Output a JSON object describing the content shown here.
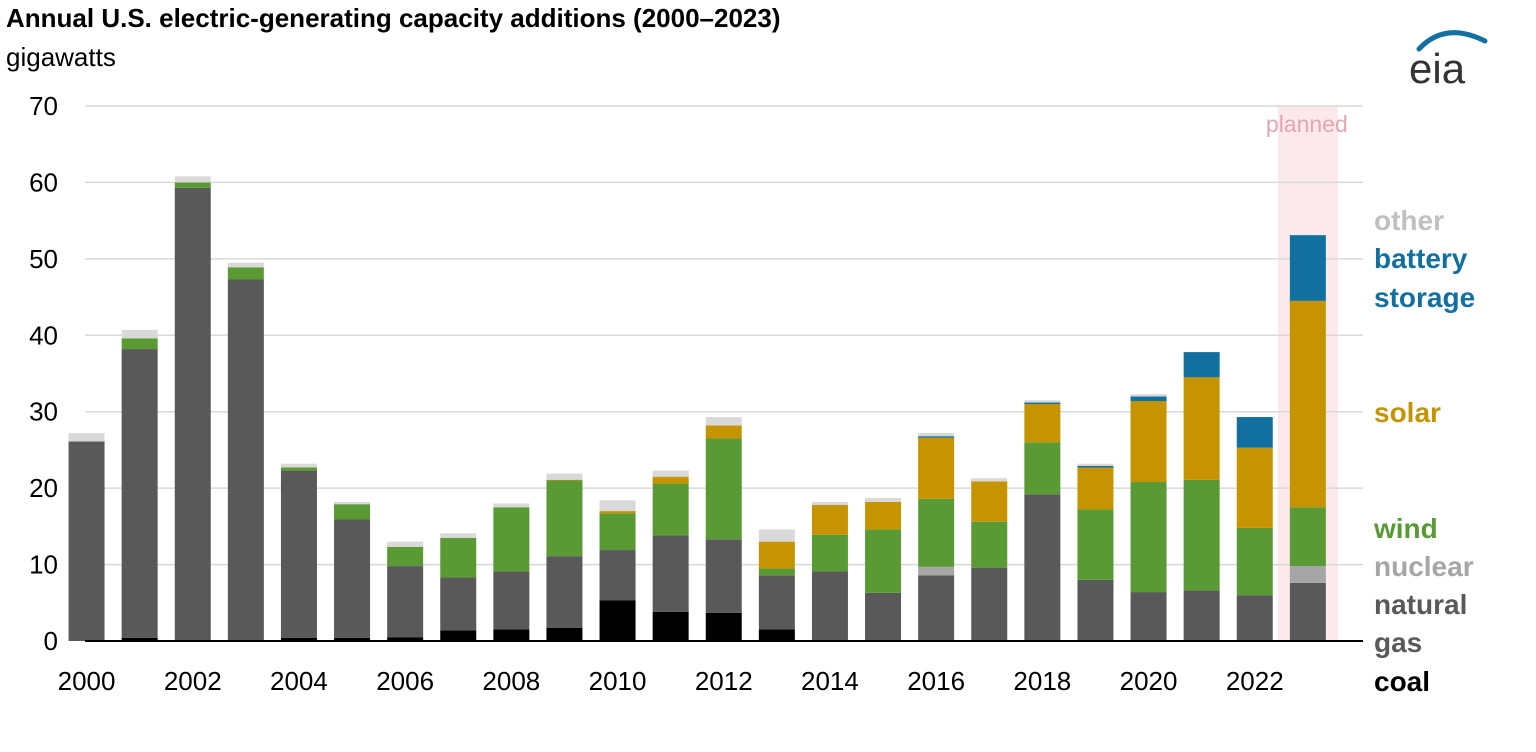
{
  "header": {
    "title": "Annual U.S. electric-generating capacity additions (2000–2023)",
    "subtitle": "gigawatts"
  },
  "logo": {
    "text": "eia"
  },
  "chart_data": {
    "type": "bar",
    "stacked": true,
    "title": "Annual U.S. electric-generating capacity additions (2000–2023)",
    "ylabel": "gigawatts",
    "xlabel": "",
    "ylim": [
      0,
      70
    ],
    "yticks": [
      0,
      10,
      20,
      30,
      40,
      50,
      60,
      70
    ],
    "grid": true,
    "legend_placement": "right",
    "categories": [
      "2000",
      "2001",
      "2002",
      "2003",
      "2004",
      "2005",
      "2006",
      "2007",
      "2008",
      "2009",
      "2010",
      "2011",
      "2012",
      "2013",
      "2014",
      "2015",
      "2016",
      "2017",
      "2018",
      "2019",
      "2020",
      "2021",
      "2022",
      "2023"
    ],
    "x_tick_labels": [
      "2000",
      "2002",
      "2004",
      "2006",
      "2008",
      "2010",
      "2012",
      "2014",
      "2016",
      "2018",
      "2020",
      "2022"
    ],
    "annotation": {
      "label": "planned",
      "category": "2023",
      "color": "#fbe9ec",
      "text_color": "#e4a6b2"
    },
    "series": [
      {
        "name": "coal",
        "color": "#000000",
        "values": [
          0,
          0.4,
          0,
          0,
          0.4,
          0.4,
          0.5,
          1.4,
          1.5,
          1.7,
          5.3,
          3.8,
          3.7,
          1.5,
          0,
          0,
          0,
          0,
          0,
          0,
          0,
          0,
          0,
          0
        ]
      },
      {
        "name": "natural gas",
        "color": "#595959",
        "values": [
          26.1,
          37.8,
          59.3,
          47.3,
          21.9,
          15.5,
          9.3,
          6.9,
          7.6,
          9.4,
          6.6,
          10.0,
          9.6,
          7.1,
          9.1,
          6.3,
          8.6,
          9.6,
          19.2,
          8.0,
          6.4,
          6.6,
          6.0,
          7.6
        ]
      },
      {
        "name": "nuclear",
        "color": "#a6a6a6",
        "values": [
          0,
          0,
          0,
          0,
          0,
          0,
          0,
          0,
          0,
          0,
          0,
          0,
          0,
          0,
          0,
          0,
          1.1,
          0,
          0,
          0,
          0,
          0,
          0,
          2.2
        ]
      },
      {
        "name": "wind",
        "color": "#5a9a34",
        "values": [
          0,
          1.4,
          0.7,
          1.6,
          0.4,
          2.0,
          2.5,
          5.2,
          8.4,
          9.9,
          4.8,
          6.8,
          13.2,
          0.9,
          4.8,
          8.3,
          8.9,
          6.0,
          6.8,
          9.2,
          14.4,
          14.5,
          8.8,
          7.7
        ]
      },
      {
        "name": "solar",
        "color": "#c59400",
        "values": [
          0,
          0,
          0,
          0,
          0,
          0,
          0,
          0,
          0,
          0.1,
          0.3,
          0.9,
          1.7,
          3.5,
          3.9,
          3.6,
          8.0,
          5.3,
          5.0,
          5.5,
          10.6,
          13.4,
          10.5,
          27.0
        ]
      },
      {
        "name": "battery storage",
        "color": "#1270a0",
        "values": [
          0,
          0,
          0,
          0,
          0,
          0,
          0,
          0,
          0,
          0,
          0,
          0,
          0,
          0,
          0,
          0,
          0.2,
          0,
          0.2,
          0.2,
          0.6,
          3.3,
          4.0,
          8.6
        ]
      },
      {
        "name": "other",
        "color": "#d9d9d9",
        "values": [
          1.1,
          1.1,
          0.8,
          0.6,
          0.5,
          0.3,
          0.7,
          0.6,
          0.5,
          0.8,
          1.4,
          0.8,
          1.1,
          1.6,
          0.4,
          0.5,
          0.4,
          0.4,
          0.3,
          0.3,
          0.3,
          0,
          0,
          0
        ]
      }
    ],
    "legend": [
      {
        "label": "other",
        "color": "#c0c0c0"
      },
      {
        "label": "battery storage",
        "color": "#1270a0"
      },
      {
        "label": "solar",
        "color": "#c59400"
      },
      {
        "label": "wind",
        "color": "#5a9a34"
      },
      {
        "label": "nuclear",
        "color": "#a6a6a6"
      },
      {
        "label": "natural gas",
        "color": "#595959"
      },
      {
        "label": "coal",
        "color": "#000000"
      }
    ]
  }
}
